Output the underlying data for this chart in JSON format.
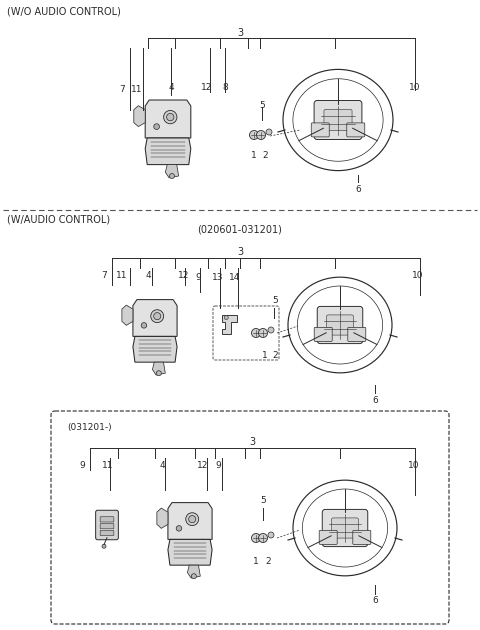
{
  "bg_color": "#ffffff",
  "line_color": "#2a2a2a",
  "section1_label": "(W/O AUDIO CONTROL)",
  "section2_label": "(W/AUDIO CONTROL)",
  "section2_sublabel": "(020601-031201)",
  "section3_sublabel": "(031201-)",
  "fig_width": 4.8,
  "fig_height": 6.3,
  "dpi": 100,
  "font_size": 6.5,
  "label_font_size": 7.0
}
